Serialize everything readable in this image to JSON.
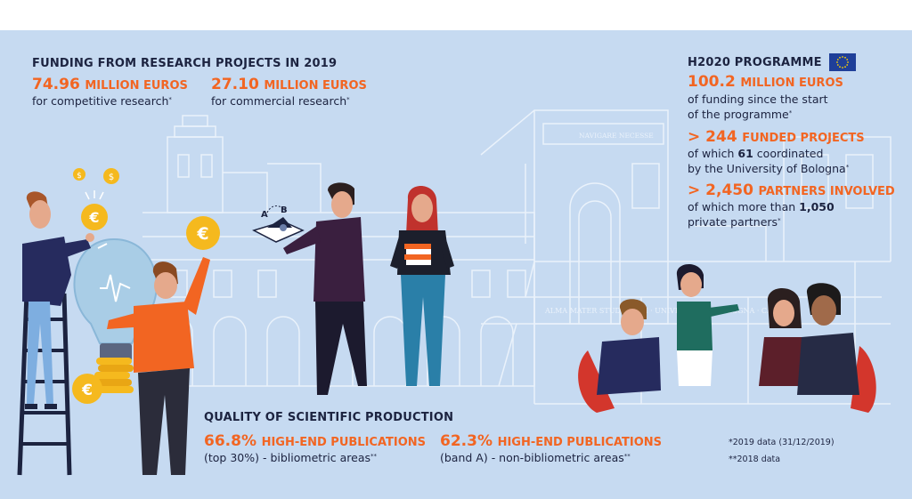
{
  "funding": {
    "heading": "FUNDING FROM RESEARCH PROJECTS IN 2019",
    "competitive": {
      "value": "74.96",
      "unit": "MILLION EUROS",
      "desc": "for competitive research",
      "mark": "*"
    },
    "commercial": {
      "value": "27.10",
      "unit": "MILLION EUROS",
      "desc": "for commercial research",
      "mark": "*"
    }
  },
  "h2020": {
    "heading": "H2020 PROGRAMME",
    "funding": {
      "value": "100.2",
      "unit": "MILLION EUROS",
      "line1": "of funding since the start",
      "line2": "of the programme",
      "mark": "*"
    },
    "projects": {
      "value": "> 244",
      "unit": "FUNDED PROJECTS",
      "line1_pre": "of which ",
      "line1_num": "61",
      "line1_post": " coordinated",
      "line2": "by the University of Bologna",
      "mark": "*"
    },
    "partners": {
      "value": "> 2,450",
      "unit": "PARTNERS INVOLVED",
      "line1_pre": "of which more than ",
      "line1_num": "1,050",
      "line2": "private partners",
      "mark": "*"
    }
  },
  "quality": {
    "heading": "QUALITY OF SCIENTIFIC PRODUCTION",
    "biblio": {
      "value": "66.8%",
      "unit": "HIGH-END PUBLICATIONS",
      "desc": "(top 30%) - bibliometric areas",
      "mark": "**"
    },
    "nonbiblio": {
      "value": "62.3%",
      "unit": "HIGH-END PUBLICATIONS",
      "desc": "(band A) - non-bibliometric areas",
      "mark": "**"
    }
  },
  "notes": {
    "n1": "*2019 data (31/12/2019)",
    "n2": "**2018 data"
  },
  "building_signs": {
    "top": "NAVIGARE NECESSE",
    "bottom": "ALMA MATER STUDIORUM · UNIVERSITÀ DI BOLOGNA · CAMPUS"
  },
  "illustration": {
    "coin_symbol": "€",
    "small_coin_symbol": "$",
    "book_letters": [
      "A",
      "B"
    ],
    "colors": {
      "background": "#c6daf1",
      "accent": "#f26522",
      "text": "#1c2340",
      "coin": "#f5b91e",
      "eu_blue": "#1f3f99"
    }
  }
}
